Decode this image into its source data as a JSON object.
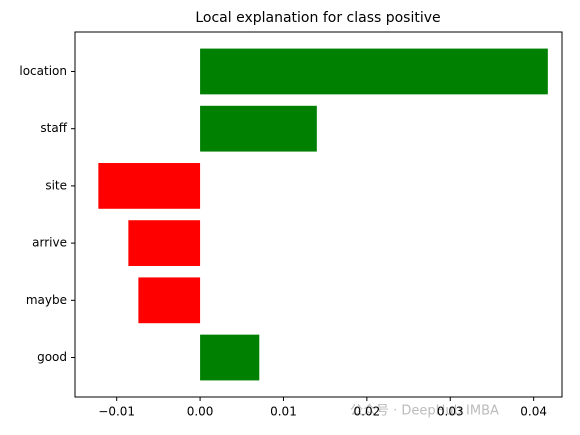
{
  "chart_data": {
    "type": "barh",
    "title": "Local explanation for class positive",
    "categories": [
      "location",
      "staff",
      "site",
      "arrive",
      "maybe",
      "good"
    ],
    "values": [
      0.0417,
      0.014,
      -0.0122,
      -0.0086,
      -0.0074,
      0.0071
    ],
    "colors": [
      "#008000",
      "#008000",
      "#ff0000",
      "#ff0000",
      "#ff0000",
      "#008000"
    ],
    "xlim": [
      -0.015,
      0.0434
    ],
    "xticks": [
      {
        "value": -0.01,
        "label": "−0.01"
      },
      {
        "value": 0,
        "label": "0.00"
      },
      0.01,
      0.02,
      0.03,
      0.04
    ],
    "watermark": "公众号 · DeepHub IMBA"
  }
}
